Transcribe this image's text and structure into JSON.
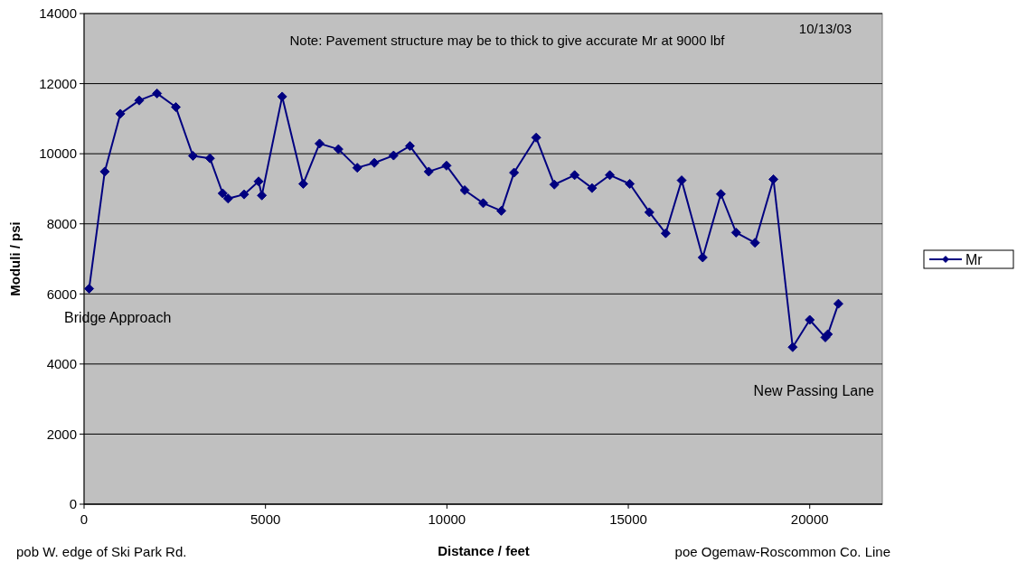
{
  "chart_data": {
    "type": "line",
    "xlabel": "Distance / feet",
    "ylabel": "Moduli / psi",
    "x": [
      140,
      570,
      1000,
      1520,
      2010,
      2530,
      3000,
      3470,
      3820,
      3970,
      4410,
      4810,
      4900,
      5460,
      6040,
      6490,
      7010,
      7530,
      8000,
      8530,
      8980,
      9500,
      9990,
      10490,
      11000,
      11500,
      11850,
      12460,
      12960,
      13520,
      14000,
      14490,
      15040,
      15580,
      16030,
      16470,
      17050,
      17550,
      17970,
      18490,
      19000,
      19530,
      20000,
      20430,
      20500,
      20790
    ],
    "series": [
      {
        "name": "Mr",
        "color": "#000080",
        "values": [
          6150,
          9490,
          11140,
          11520,
          11720,
          11330,
          9940,
          9870,
          8870,
          8720,
          8840,
          9210,
          8810,
          11630,
          9140,
          10290,
          10130,
          9600,
          9740,
          9950,
          10220,
          9490,
          9660,
          8960,
          8590,
          8370,
          9460,
          10460,
          9120,
          9390,
          9020,
          9390,
          9140,
          8330,
          7730,
          9240,
          7040,
          8850,
          7750,
          7460,
          9270,
          4480,
          5260,
          4760,
          4850,
          5720
        ]
      }
    ],
    "xlim": [
      0,
      22000
    ],
    "xticks": [
      0,
      5000,
      10000,
      15000,
      20000
    ],
    "ylim": [
      0,
      14000
    ],
    "yticks": [
      0,
      2000,
      4000,
      6000,
      8000,
      10000,
      12000,
      14000
    ],
    "grid": "y",
    "legend": "right",
    "marker": "diamond",
    "line_style": "solid",
    "annotations": [
      "Note: Pavement structure may be to thick to give accurate Mr at 9000 lbf",
      "10/13/03",
      "Bridge Approach",
      "New Passing Lane",
      "pob W. edge of Ski Park Rd.",
      "poe Ogemaw-Roscommon Co. Line"
    ]
  }
}
